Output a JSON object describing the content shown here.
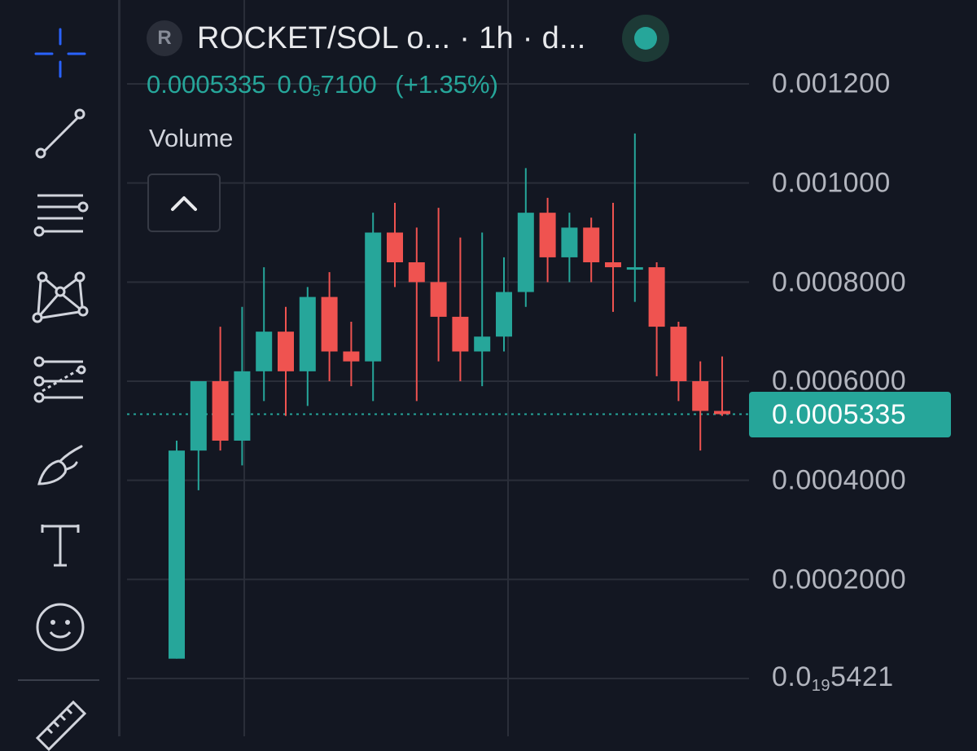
{
  "toolbar": {
    "tools": [
      {
        "name": "crosshair-icon"
      },
      {
        "name": "trend-line-icon"
      },
      {
        "name": "horizontal-lines-icon"
      },
      {
        "name": "pattern-icon"
      },
      {
        "name": "fib-retracement-icon"
      },
      {
        "name": "brush-icon"
      },
      {
        "name": "text-icon"
      },
      {
        "name": "emoji-icon"
      },
      {
        "name": "ruler-icon"
      }
    ]
  },
  "header": {
    "symbol_badge": "R",
    "title": "ROCKET/SOL o... · 1h · d...",
    "last_price": "0.0005335",
    "change_prefix": "0.0",
    "change_subscript": "5",
    "change_rest": "7100",
    "change_percent": "(+1.35%)",
    "volume_label": "Volume",
    "status_color": "#26a69a"
  },
  "price_scale": {
    "labels": [
      "0.001200",
      "0.001000",
      "0.0008000",
      "0.0006000",
      "0.0004000",
      "0.0002000"
    ],
    "bottom_label_prefix": "0.0",
    "bottom_label_subscript": "19",
    "bottom_label_rest": "5421",
    "last_price_tag": "0.0005335"
  },
  "colors": {
    "background": "#131722",
    "up": "#26a69a",
    "down": "#ef5350",
    "grid": "#2a2e39"
  },
  "chart_data": {
    "type": "candlestick",
    "y_ticks": [
      0.0012,
      0.001,
      0.0008,
      0.0006,
      0.0004,
      0.0002,
      0.0
    ],
    "last_price": 0.0005335,
    "grid": true,
    "candles": [
      {
        "o": 4e-05,
        "h": 0.00048,
        "l": 4e-05,
        "c": 0.00046
      },
      {
        "o": 0.00046,
        "h": 0.0006,
        "l": 0.00038,
        "c": 0.0006
      },
      {
        "o": 0.0006,
        "h": 0.00071,
        "l": 0.00046,
        "c": 0.00048
      },
      {
        "o": 0.00048,
        "h": 0.00075,
        "l": 0.00043,
        "c": 0.00062
      },
      {
        "o": 0.00062,
        "h": 0.00083,
        "l": 0.00056,
        "c": 0.0007
      },
      {
        "o": 0.0007,
        "h": 0.00075,
        "l": 0.00053,
        "c": 0.00062
      },
      {
        "o": 0.00062,
        "h": 0.00079,
        "l": 0.00055,
        "c": 0.00077
      },
      {
        "o": 0.00077,
        "h": 0.00082,
        "l": 0.0006,
        "c": 0.00066
      },
      {
        "o": 0.00066,
        "h": 0.00072,
        "l": 0.00059,
        "c": 0.00064
      },
      {
        "o": 0.00064,
        "h": 0.00094,
        "l": 0.00056,
        "c": 0.0009
      },
      {
        "o": 0.0009,
        "h": 0.00096,
        "l": 0.00079,
        "c": 0.00084
      },
      {
        "o": 0.00084,
        "h": 0.00091,
        "l": 0.00056,
        "c": 0.0008
      },
      {
        "o": 0.0008,
        "h": 0.00095,
        "l": 0.00064,
        "c": 0.00073
      },
      {
        "o": 0.00073,
        "h": 0.00089,
        "l": 0.0006,
        "c": 0.00066
      },
      {
        "o": 0.00066,
        "h": 0.0009,
        "l": 0.00059,
        "c": 0.00069
      },
      {
        "o": 0.00069,
        "h": 0.00085,
        "l": 0.00066,
        "c": 0.00078
      },
      {
        "o": 0.00078,
        "h": 0.00103,
        "l": 0.00075,
        "c": 0.00094
      },
      {
        "o": 0.00094,
        "h": 0.00097,
        "l": 0.0008,
        "c": 0.00085
      },
      {
        "o": 0.00085,
        "h": 0.00094,
        "l": 0.0008,
        "c": 0.00091
      },
      {
        "o": 0.00091,
        "h": 0.00093,
        "l": 0.0008,
        "c": 0.00084
      },
      {
        "o": 0.00084,
        "h": 0.00096,
        "l": 0.00074,
        "c": 0.00083
      },
      {
        "o": 0.00083,
        "h": 0.0011,
        "l": 0.00076,
        "c": 0.00083
      },
      {
        "o": 0.00083,
        "h": 0.00084,
        "l": 0.00061,
        "c": 0.00071
      },
      {
        "o": 0.00071,
        "h": 0.00072,
        "l": 0.00056,
        "c": 0.0006
      },
      {
        "o": 0.0006,
        "h": 0.00064,
        "l": 0.00046,
        "c": 0.00054
      },
      {
        "o": 0.00054,
        "h": 0.00065,
        "l": 0.00053,
        "c": 0.0005335
      }
    ]
  }
}
